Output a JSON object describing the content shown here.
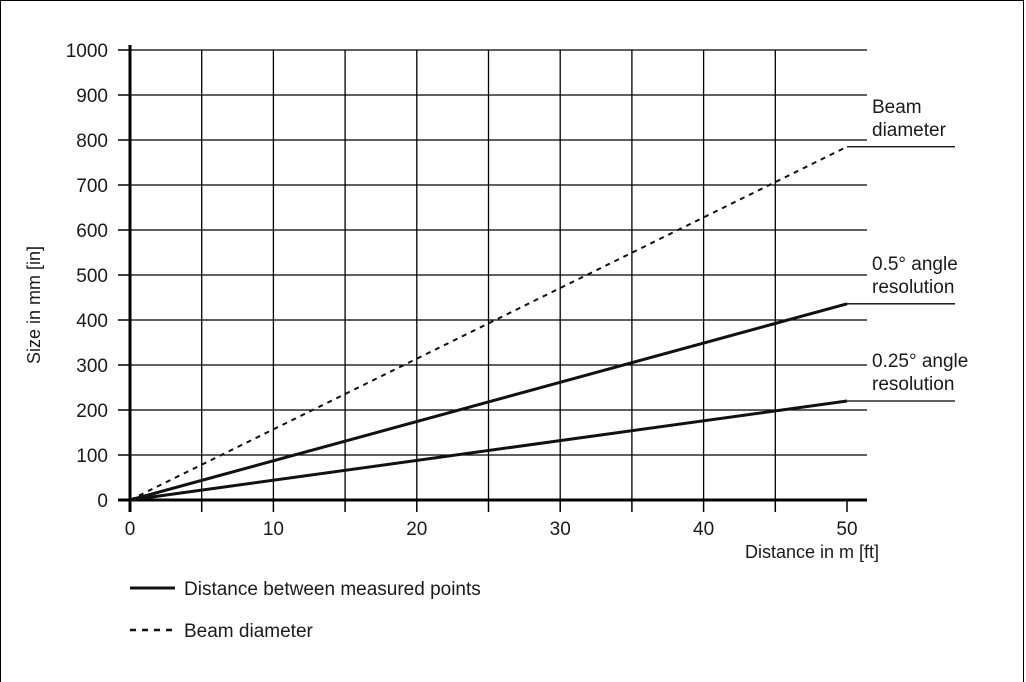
{
  "chart_data": {
    "type": "line",
    "xlabel": "Distance in m [ft]",
    "ylabel": "Size in mm [in]",
    "xlim": [
      0,
      50
    ],
    "ylim": [
      0,
      1000
    ],
    "xticks": [
      0,
      10,
      20,
      30,
      40,
      50
    ],
    "yticks": [
      0,
      100,
      200,
      300,
      400,
      500,
      600,
      700,
      800,
      900,
      1000
    ],
    "grid": true,
    "series": [
      {
        "key": "beam",
        "x": [
          0,
          50
        ],
        "y": [
          0,
          785
        ],
        "style": "dashed"
      },
      {
        "key": "res05",
        "x": [
          0,
          50
        ],
        "y": [
          0,
          436
        ],
        "style": "solid"
      },
      {
        "key": "res025",
        "x": [
          0,
          50
        ],
        "y": [
          0,
          220
        ],
        "style": "solid"
      }
    ],
    "annotations": [
      {
        "series": "beam",
        "lines": [
          "Beam",
          "diameter"
        ]
      },
      {
        "series": "res05",
        "lines": [
          "0.5° angle",
          "resolution"
        ]
      },
      {
        "series": "res025",
        "lines": [
          "0.25° angle",
          "resolution"
        ]
      }
    ],
    "legend": [
      {
        "label": "Distance between measured points",
        "style": "solid"
      },
      {
        "label": "Beam diameter",
        "style": "dashed"
      }
    ],
    "legend_position": "bottom-left"
  }
}
